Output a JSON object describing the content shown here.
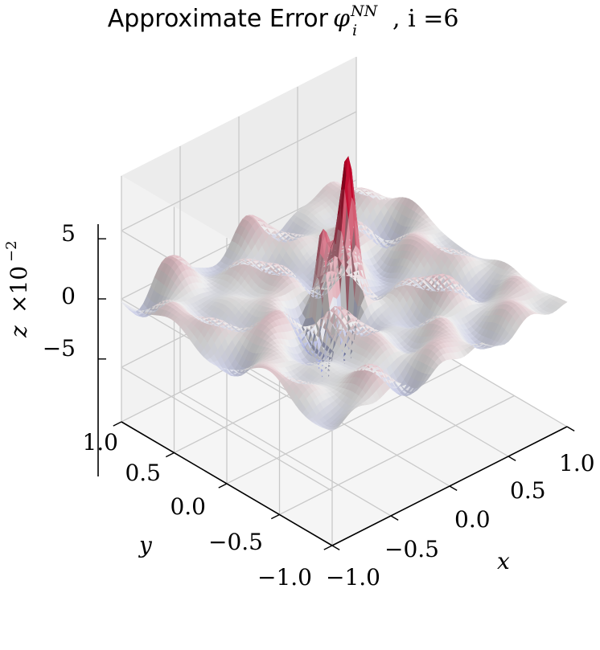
{
  "chart_data": {
    "type": "surface3d",
    "title_text": "Approximate Error",
    "title_math": "φ",
    "title_math_sup": "NN",
    "title_math_sub": "i",
    "title_suffix": ", i =6",
    "xlabel": "x",
    "ylabel": "y",
    "zlabel": "z",
    "z_multiplier": "×10",
    "z_multiplier_exp": "−2",
    "x_ticks": [
      "−1.0",
      "−0.5",
      "0.0",
      "0.5",
      "1.0"
    ],
    "y_ticks": [
      "−1.0",
      "−0.5",
      "0.0",
      "0.5",
      "1.0"
    ],
    "z_ticks": [
      "−5",
      "0",
      "5"
    ],
    "xlim": [
      -1,
      1
    ],
    "ylim": [
      -1,
      1
    ],
    "zlim": [
      -9,
      9
    ],
    "colormap": "coolwarm",
    "colormap_low": "#3b4cc0",
    "colormap_mid": "#dddddd",
    "colormap_high": "#b40426",
    "surface_features": {
      "background_oscillation_amplitude": 1.0,
      "peaks": [
        {
          "x": 0.05,
          "y": 0.02,
          "z": 7.5
        },
        {
          "x": -0.12,
          "y": 0.08,
          "z": 6.0
        }
      ],
      "troughs": [
        {
          "x": -0.02,
          "y": -0.05,
          "z": -8.0
        },
        {
          "x": -0.25,
          "y": -0.1,
          "z": -4.5
        }
      ]
    },
    "grid": true
  }
}
